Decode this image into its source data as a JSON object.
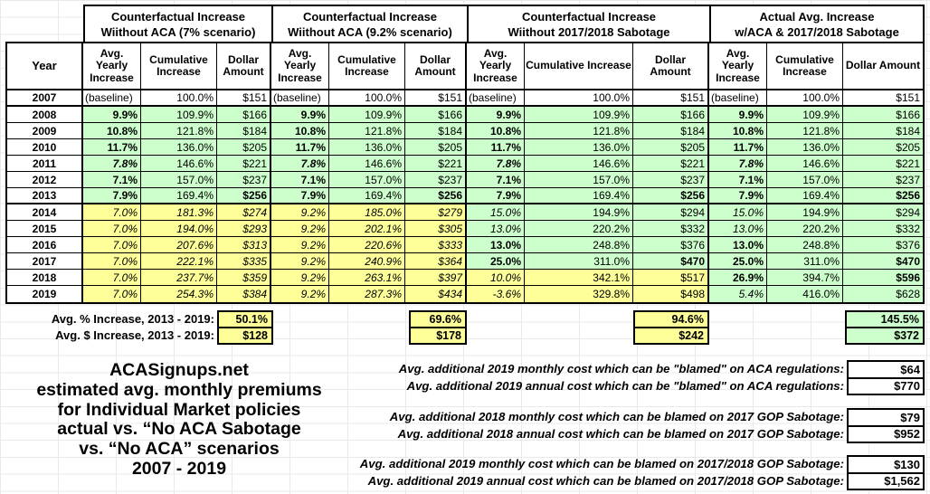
{
  "colors": {
    "highlight_green": "#ccffcc",
    "highlight_yellow": "#ffff99",
    "gridline": "#dcdcdc",
    "border": "#000000"
  },
  "chart_data": {
    "type": "table",
    "title": "ACASignups.net estimated avg. monthly premiums for Individual Market policies, actual vs. “No ACA Sabotage” vs. “No ACA” scenarios, 2007 - 2019",
    "year_label": "Year",
    "groups": [
      {
        "title_line1": "Counterfactual Increase",
        "title_line2": "Wiithout ACA (7% scenario)"
      },
      {
        "title_line1": "Counterfactual Increase",
        "title_line2": "Wiithout ACA (9.2% scenario)"
      },
      {
        "title_line1": "Counterfactual Increase",
        "title_line2": "Wiithout 2017/2018 Sabotage"
      },
      {
        "title_line1": "Actual Avg. Increase",
        "title_line2": "w/ACA & 2017/2018 Sabotage"
      }
    ],
    "columns_per_group": [
      "Avg. Yearly Increase",
      "Cumulative Increase",
      "Dollar Amount"
    ],
    "rows": [
      {
        "year": "2007",
        "cells": [
          "wl|(baseline)",
          "w|100.0%",
          "w|$151",
          "wl|(baseline)",
          "w|100.0%",
          "w|$151",
          "wl|(baseline)",
          "w|100.0%",
          "w|$151",
          "wl|(baseline)",
          "w|100.0%",
          "w|$151"
        ]
      },
      {
        "year": "2008",
        "cells": [
          "gb|9.9%",
          "g|109.9%",
          "g|$166",
          "gb|9.9%",
          "g|109.9%",
          "g|$166",
          "gb|9.9%",
          "g|109.9%",
          "g|$166",
          "gb|9.9%",
          "g|109.9%",
          "g|$166"
        ]
      },
      {
        "year": "2009",
        "cells": [
          "gb|10.8%",
          "g|121.8%",
          "g|$184",
          "gb|10.8%",
          "g|121.8%",
          "g|$184",
          "gb|10.8%",
          "g|121.8%",
          "g|$184",
          "gb|10.8%",
          "g|121.8%",
          "g|$184"
        ]
      },
      {
        "year": "2010",
        "cells": [
          "gb|11.7%",
          "g|136.0%",
          "g|$205",
          "gb|11.7%",
          "g|136.0%",
          "g|$205",
          "gb|11.7%",
          "g|136.0%",
          "g|$205",
          "gb|11.7%",
          "g|136.0%",
          "g|$205"
        ]
      },
      {
        "year": "2011",
        "cells": [
          "gbi|7.8%",
          "g|146.6%",
          "g|$221",
          "gbi|7.8%",
          "g|146.6%",
          "g|$221",
          "gbi|7.8%",
          "g|146.6%",
          "g|$221",
          "gbi|7.8%",
          "g|146.6%",
          "g|$221"
        ]
      },
      {
        "year": "2012",
        "cells": [
          "gb|7.1%",
          "g|157.0%",
          "g|$237",
          "gb|7.1%",
          "g|157.0%",
          "g|$237",
          "gb|7.1%",
          "g|157.0%",
          "g|$237",
          "gb|7.1%",
          "g|157.0%",
          "g|$237"
        ]
      },
      {
        "year": "2013",
        "cells": [
          "gb|7.9%",
          "g|169.4%",
          "gb|$256",
          "gb|7.9%",
          "g|169.4%",
          "gb|$256",
          "gb|7.9%",
          "g|169.4%",
          "gb|$256",
          "gb|7.9%",
          "g|169.4%",
          "gb|$256"
        ]
      },
      {
        "year": "2014",
        "cells": [
          "yi|7.0%",
          "yi|181.3%",
          "yi|$274",
          "yi|9.2%",
          "yi|185.0%",
          "yi|$279",
          "gi|15.0%",
          "g|194.9%",
          "g|$294",
          "gi|15.0%",
          "g|194.9%",
          "g|$294"
        ]
      },
      {
        "year": "2015",
        "cells": [
          "yi|7.0%",
          "yi|194.0%",
          "yi|$293",
          "yi|9.2%",
          "yi|202.1%",
          "yi|$305",
          "gi|13.0%",
          "g|220.2%",
          "g|$332",
          "gi|13.0%",
          "g|220.2%",
          "g|$332"
        ]
      },
      {
        "year": "2016",
        "cells": [
          "yi|7.0%",
          "yi|207.6%",
          "yi|$313",
          "yi|9.2%",
          "yi|220.6%",
          "yi|$333",
          "gb|13.0%",
          "g|248.8%",
          "g|$376",
          "gb|13.0%",
          "g|248.8%",
          "g|$376"
        ]
      },
      {
        "year": "2017",
        "cells": [
          "yi|7.0%",
          "yi|222.1%",
          "yi|$335",
          "yi|9.2%",
          "yi|240.9%",
          "yi|$364",
          "gb|25.0%",
          "g|311.0%",
          "gb|$470",
          "gb|25.0%",
          "g|311.0%",
          "gb|$470"
        ]
      },
      {
        "year": "2018",
        "cells": [
          "yi|7.0%",
          "yi|237.7%",
          "yi|$359",
          "yi|9.2%",
          "yi|263.1%",
          "yi|$397",
          "yi|10.0%",
          "y|342.1%",
          "y|$517",
          "gb|26.9%",
          "g|394.7%",
          "gb|$596"
        ]
      },
      {
        "year": "2019",
        "cells": [
          "yi|7.0%",
          "yi|254.3%",
          "yi|$384",
          "yi|9.2%",
          "yi|287.3%",
          "yi|$434",
          "yi|-3.6%",
          "y|329.8%",
          "y|$498",
          "gi|5.4%",
          "g|416.0%",
          "g|$628"
        ]
      }
    ]
  },
  "summary": {
    "rows": [
      {
        "label": "Avg. % Increase, 2013 - 2019:",
        "values": [
          {
            "v": "50.1%",
            "bg": "y"
          },
          {
            "v": "69.6%",
            "bg": "y"
          },
          {
            "v": "94.6%",
            "bg": "y"
          },
          {
            "v": "145.5%",
            "bg": "g"
          }
        ]
      },
      {
        "label": "Avg. $ Increase, 2013 - 2019:",
        "values": [
          {
            "v": "$128",
            "bg": "y"
          },
          {
            "v": "$178",
            "bg": "y"
          },
          {
            "v": "$242",
            "bg": "y"
          },
          {
            "v": "$372",
            "bg": "g"
          }
        ]
      }
    ]
  },
  "footer": {
    "lines": [
      "ACASignups.net",
      "estimated avg. monthly premiums",
      "for Individual Market policies",
      "actual vs. “No ACA Sabotage",
      "vs. “No ACA” scenarios",
      "2007 - 2019"
    ]
  },
  "annotations": [
    {
      "rows": [
        {
          "label": "Avg. additional 2019 monthly cost which can be \"blamed\" on ACA regulations:",
          "value": "$64"
        },
        {
          "label": "Avg. additional 2019 annual cost which can be \"blamed\" on ACA regulations:",
          "value": "$770"
        }
      ]
    },
    {
      "rows": [
        {
          "label": "Avg. additional 2018 monthly cost which can be blamed on 2017 GOP Sabotage:",
          "value": "$79"
        },
        {
          "label": "Avg. additional 2018 annual cost which can be blamed on 2017 GOP Sabotage:",
          "value": "$952"
        }
      ]
    },
    {
      "rows": [
        {
          "label": "Avg. additional 2019 monthly cost which can be blamed on 2017/2018 GOP Sabotage:",
          "value": "$130"
        },
        {
          "label": "Avg. additional 2019 annual cost which can be blamed on 2017/2018 GOP Sabotage:",
          "value": "$1,562"
        }
      ]
    }
  ]
}
